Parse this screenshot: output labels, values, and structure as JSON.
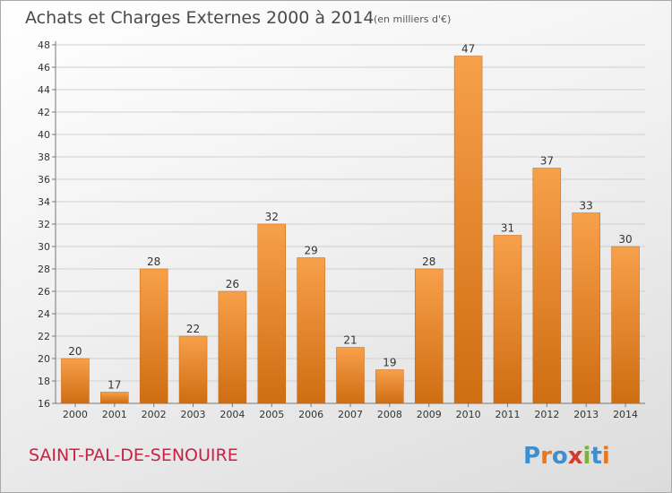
{
  "chart_data": {
    "type": "bar",
    "title": "Achats et Charges Externes 2000 à 2014",
    "subtitle": "(en milliers d'€)",
    "categories": [
      "2000",
      "2001",
      "2002",
      "2003",
      "2004",
      "2005",
      "2006",
      "2007",
      "2008",
      "2009",
      "2010",
      "2011",
      "2012",
      "2013",
      "2014"
    ],
    "values": [
      20,
      17,
      28,
      22,
      26,
      32,
      29,
      21,
      19,
      28,
      47,
      31,
      37,
      33,
      30
    ],
    "ylim": [
      16,
      48
    ],
    "yticks": [
      "16",
      "18",
      "20",
      "22",
      "24",
      "26",
      "28",
      "30",
      "32",
      "34",
      "36",
      "38",
      "40",
      "42",
      "44",
      "46",
      "48"
    ],
    "grid": true,
    "bar_color": "#f0922e"
  },
  "footer": {
    "commune": "SAINT-PAL-DE-SENOUIRE",
    "brand": "Proxiti"
  }
}
